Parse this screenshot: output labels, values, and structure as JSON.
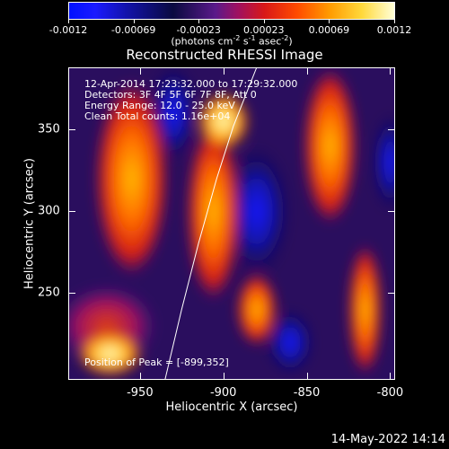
{
  "colorbar": {
    "ticks": [
      "-0.0012",
      "-0.00069",
      "-0.00023",
      "0.00023",
      "0.00069",
      "0.0012"
    ],
    "units_prefix": "(photons cm",
    "units_exp1": "-2",
    "units_mid1": " s",
    "units_exp2": "-1",
    "units_mid2": " asec",
    "units_exp3": "-2",
    "units_suffix": ")"
  },
  "chart_data": {
    "type": "heatmap",
    "title": "Reconstructed RHESSI Image",
    "xlabel": "Heliocentric X (arcsec)",
    "ylabel": "Heliocentric Y (arcsec)",
    "xlim": [
      -993,
      -797
    ],
    "ylim": [
      197,
      388
    ],
    "xticks": [
      -950,
      -900,
      -850,
      -800
    ],
    "xtick_labels": [
      "-950",
      "-900",
      "-850",
      "-800"
    ],
    "yticks": [
      250,
      300,
      350
    ],
    "ytick_labels": [
      "250",
      "300",
      "350"
    ],
    "colorbar_range": [
      -0.0012,
      0.0012
    ],
    "peak": [
      -899,
      352
    ],
    "limb_curve": [
      [
        -935,
        197
      ],
      [
        -925,
        240
      ],
      [
        -915,
        280
      ],
      [
        -904,
        320
      ],
      [
        -894,
        352
      ],
      [
        -880,
        388
      ]
    ],
    "blobs": [
      {
        "x": -900,
        "y": 355,
        "rx": 16,
        "ry": 18,
        "level": "peak"
      },
      {
        "x": -968,
        "y": 213,
        "rx": 20,
        "ry": 14,
        "level": "peak"
      },
      {
        "x": -955,
        "y": 320,
        "rx": 22,
        "ry": 60,
        "level": "high"
      },
      {
        "x": -906,
        "y": 300,
        "rx": 16,
        "ry": 55,
        "level": "high"
      },
      {
        "x": -880,
        "y": 240,
        "rx": 12,
        "ry": 22,
        "level": "high"
      },
      {
        "x": -836,
        "y": 340,
        "rx": 16,
        "ry": 48,
        "level": "high"
      },
      {
        "x": -815,
        "y": 240,
        "rx": 10,
        "ry": 40,
        "level": "high"
      },
      {
        "x": -970,
        "y": 230,
        "rx": 30,
        "ry": 25,
        "level": "mid"
      },
      {
        "x": -930,
        "y": 360,
        "rx": 14,
        "ry": 30,
        "level": "negative"
      },
      {
        "x": -880,
        "y": 300,
        "rx": 20,
        "ry": 40,
        "level": "negative"
      },
      {
        "x": -800,
        "y": 330,
        "rx": 10,
        "ry": 30,
        "level": "negative"
      },
      {
        "x": -860,
        "y": 220,
        "rx": 14,
        "ry": 20,
        "level": "negative"
      }
    ]
  },
  "annotations": {
    "time": "12-Apr-2014 17:23:32.000 to 17:29:32.000",
    "detectors": "Detectors: 3F 4F 5F 6F 7F 8F, Att 0",
    "energy": "Energy Range: 12.0 - 25.0 keV",
    "clean": "Clean     Total counts: 1.16e+04",
    "peak": "Position of Peak = [-899,352]"
  },
  "timestamp": "14-May-2022 14:14",
  "colors": {
    "background": "#000000",
    "limb": "#ffffff"
  }
}
